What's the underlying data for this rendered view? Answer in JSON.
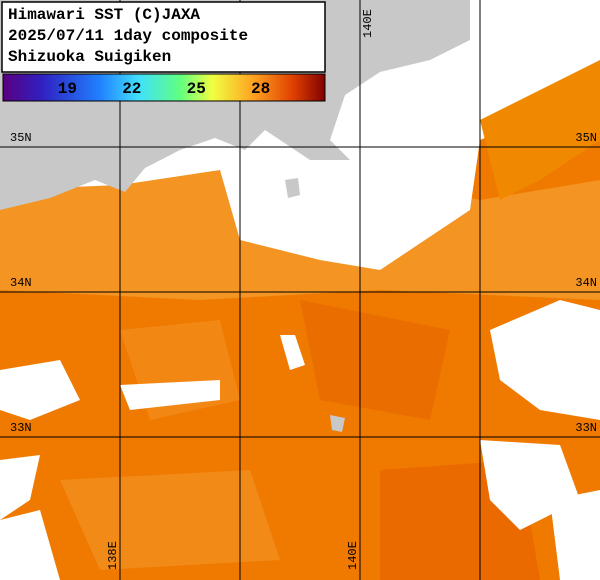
{
  "header": {
    "lines": [
      "Himawari SST (C)JAXA",
      "2025/07/11 1day composite",
      "Shizuoka Suigiken"
    ]
  },
  "colorbar": {
    "range": [
      16,
      31
    ],
    "ticks": [
      19,
      22,
      25,
      28
    ]
  },
  "map": {
    "lon_range": [
      137,
      142
    ],
    "lat_range": [
      36.014,
      32.014
    ],
    "lon_grid": [
      138,
      139,
      140,
      141
    ],
    "lat_ticks": [
      {
        "value": 35,
        "label": "35N"
      },
      {
        "value": 34,
        "label": "34N"
      },
      {
        "value": 33,
        "label": "33N"
      }
    ],
    "lon_labels_top": [
      {
        "value": 140,
        "label": "140E"
      }
    ],
    "lon_labels_bottom": [
      {
        "value": 138,
        "label": "138E"
      },
      {
        "value": 140,
        "label": "140E"
      }
    ]
  }
}
